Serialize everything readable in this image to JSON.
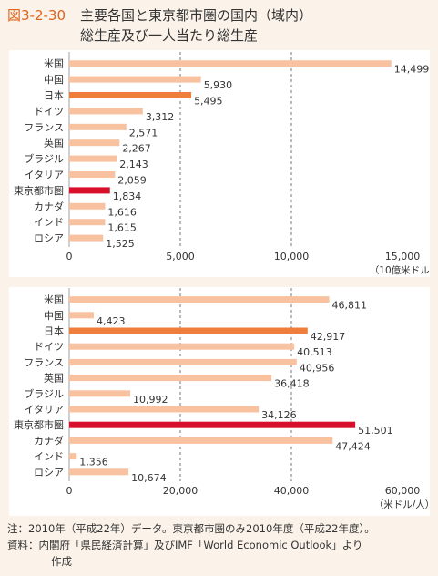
{
  "header": {
    "figure_number": "図3-2-30",
    "title_line1": "主要各国と東京都市圏の国内（域内）",
    "title_line2": "総生産及び一人当たり総生産"
  },
  "colors": {
    "background": "#fbf3ea",
    "panel": "#ffffff",
    "bar_default": "#f8c2a0",
    "bar_japan": "#ef7d3c",
    "bar_tokyo": "#d8102c",
    "figure_number": "#e0641c"
  },
  "chart_data": [
    {
      "type": "bar",
      "orientation": "horizontal",
      "categories": [
        "米国",
        "中国",
        "日本",
        "ドイツ",
        "フランス",
        "英国",
        "ブラジル",
        "イタリア",
        "東京都市圏",
        "カナダ",
        "インド",
        "ロシア"
      ],
      "values": [
        14499,
        5930,
        5495,
        3312,
        2571,
        2267,
        2143,
        2059,
        1834,
        1616,
        1615,
        1525
      ],
      "value_labels": [
        "14,499",
        "5,930",
        "5,495",
        "3,312",
        "2,571",
        "2,267",
        "2,143",
        "2,059",
        "1,834",
        "1,616",
        "1,615",
        "1,525"
      ],
      "highlight": {
        "日本": "japan",
        "東京都市圏": "tokyo"
      },
      "xlim": [
        0,
        15000
      ],
      "xticks": [
        0,
        5000,
        10000,
        15000
      ],
      "xtick_labels": [
        "0",
        "5,000",
        "10,000",
        "15,000"
      ],
      "unit": "（10億米ドル）",
      "grid": "dashed vertical at 5,000 and 10,000"
    },
    {
      "type": "bar",
      "orientation": "horizontal",
      "categories": [
        "米国",
        "中国",
        "日本",
        "ドイツ",
        "フランス",
        "英国",
        "ブラジル",
        "イタリア",
        "東京都市圏",
        "カナダ",
        "インド",
        "ロシア"
      ],
      "values": [
        46811,
        4423,
        42917,
        40513,
        40956,
        36418,
        10992,
        34126,
        51501,
        47424,
        1356,
        10674
      ],
      "value_labels": [
        "46,811",
        "4,423",
        "42,917",
        "40,513",
        "40,956",
        "36,418",
        "10,992",
        "34,126",
        "51,501",
        "47,424",
        "1,356",
        "10,674"
      ],
      "highlight": {
        "日本": "japan",
        "東京都市圏": "tokyo"
      },
      "xlim": [
        0,
        60000
      ],
      "xticks": [
        0,
        20000,
        40000,
        60000
      ],
      "xtick_labels": [
        "0",
        "20,000",
        "40,000",
        "60,000"
      ],
      "unit": "（米ドル/人）",
      "grid": "dashed vertical at 20,000 and 40,000"
    }
  ],
  "notes": {
    "note": "注：2010年（平成22年）データ。東京都市圏のみ2010年度（平成22年度）。",
    "source_line1": "資料：内閣府「県民経済計算」及びIMF「World Economic Outlook」より",
    "source_line2": "作成"
  }
}
